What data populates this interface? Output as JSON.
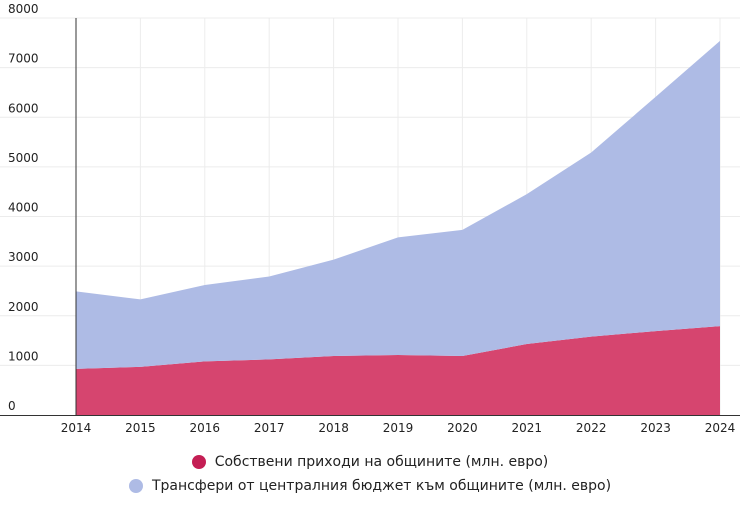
{
  "chart_data": {
    "type": "area",
    "stacked": true,
    "x": [
      "2014",
      "2015",
      "2016",
      "2017",
      "2018",
      "2019",
      "2020",
      "2021",
      "2022",
      "2023",
      "2024"
    ],
    "series": [
      {
        "name": "Собствени приходи на общините (млн. евро)",
        "color": "#d6456f",
        "values": [
          930,
          970,
          1080,
          1120,
          1190,
          1210,
          1190,
          1430,
          1580,
          1690,
          1790
        ]
      },
      {
        "name": "Трансфери от централния бюджет към общините (млн. евро)",
        "color": "#aebbe5",
        "values": [
          1560,
          1360,
          1540,
          1670,
          1940,
          2370,
          2540,
          3020,
          3710,
          4720,
          5750
        ]
      }
    ],
    "yticks": [
      "0",
      "1000",
      "2000",
      "3000",
      "4000",
      "5000",
      "6000",
      "7000",
      "8000"
    ],
    "ylim": [
      0,
      8000
    ],
    "grid": true,
    "legend_position": "bottom"
  },
  "legend": [
    {
      "label": "Собствени приходи на общините (млн. евро)",
      "color": "#c41e54"
    },
    {
      "label": "Трансфери от централния бюджет към общините (млн. евро)",
      "color": "#aebbe5"
    }
  ]
}
